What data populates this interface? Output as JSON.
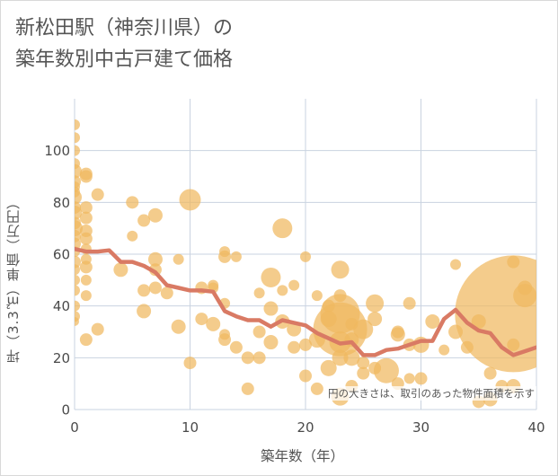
{
  "title_lines": [
    "新松田駅（神奈川県）の",
    "築年数別中古戸建て価格"
  ],
  "chart_data": {
    "type": "scatter",
    "xlabel": "築年数（年）",
    "ylabel": "坪（3.3㎡）単価（万円）",
    "xlim": [
      0,
      40
    ],
    "ylim": [
      0,
      120
    ],
    "xticks": [
      "0",
      "10",
      "20",
      "30",
      "40"
    ],
    "yticks": [
      "0",
      "20",
      "40",
      "60",
      "80",
      "100"
    ],
    "grid": true,
    "annotation": "円の大きさは、取引のあった物件面積を示す",
    "colors": {
      "bubble": "#f0b860",
      "line": "#d97a64",
      "grid": "#c9d3e0"
    },
    "bubble_size_unit": "area, relative",
    "bubbles": [
      {
        "x": 0,
        "y": 110,
        "s": 6
      },
      {
        "x": 0,
        "y": 105,
        "s": 6
      },
      {
        "x": 0,
        "y": 100,
        "s": 6
      },
      {
        "x": 0,
        "y": 95,
        "s": 6
      },
      {
        "x": 0,
        "y": 92,
        "s": 8
      },
      {
        "x": 0,
        "y": 88,
        "s": 7
      },
      {
        "x": 0,
        "y": 86,
        "s": 6
      },
      {
        "x": 0,
        "y": 84,
        "s": 6
      },
      {
        "x": 0,
        "y": 82,
        "s": 8
      },
      {
        "x": 0,
        "y": 78,
        "s": 7
      },
      {
        "x": 0,
        "y": 76,
        "s": 8
      },
      {
        "x": 0,
        "y": 72,
        "s": 7
      },
      {
        "x": 0,
        "y": 70,
        "s": 9
      },
      {
        "x": 0,
        "y": 67,
        "s": 7
      },
      {
        "x": 0,
        "y": 64,
        "s": 7
      },
      {
        "x": 0,
        "y": 61,
        "s": 6
      },
      {
        "x": 0,
        "y": 57,
        "s": 7
      },
      {
        "x": 0,
        "y": 54,
        "s": 6
      },
      {
        "x": 0,
        "y": 50,
        "s": 6
      },
      {
        "x": 0,
        "y": 46,
        "s": 6
      },
      {
        "x": 0,
        "y": 40,
        "s": 6
      },
      {
        "x": 0,
        "y": 36,
        "s": 6
      },
      {
        "x": 0,
        "y": 34,
        "s": 5
      },
      {
        "x": 1,
        "y": 91,
        "s": 7
      },
      {
        "x": 1,
        "y": 90,
        "s": 7
      },
      {
        "x": 1,
        "y": 78,
        "s": 7
      },
      {
        "x": 1,
        "y": 74,
        "s": 7
      },
      {
        "x": 1,
        "y": 69,
        "s": 7
      },
      {
        "x": 1,
        "y": 66,
        "s": 7
      },
      {
        "x": 1,
        "y": 62,
        "s": 6
      },
      {
        "x": 1,
        "y": 58,
        "s": 6
      },
      {
        "x": 1,
        "y": 55,
        "s": 7
      },
      {
        "x": 1,
        "y": 50,
        "s": 6
      },
      {
        "x": 1,
        "y": 44,
        "s": 6
      },
      {
        "x": 1,
        "y": 27,
        "s": 7
      },
      {
        "x": 2,
        "y": 83,
        "s": 7
      },
      {
        "x": 2,
        "y": 31,
        "s": 7
      },
      {
        "x": 4,
        "y": 54,
        "s": 8
      },
      {
        "x": 5,
        "y": 80,
        "s": 7
      },
      {
        "x": 5,
        "y": 67,
        "s": 6
      },
      {
        "x": 6,
        "y": 73,
        "s": 7
      },
      {
        "x": 6,
        "y": 46,
        "s": 7
      },
      {
        "x": 6,
        "y": 38,
        "s": 8
      },
      {
        "x": 7,
        "y": 75,
        "s": 8
      },
      {
        "x": 7,
        "y": 58,
        "s": 8
      },
      {
        "x": 7,
        "y": 47,
        "s": 7
      },
      {
        "x": 7,
        "y": 54,
        "s": 7
      },
      {
        "x": 8,
        "y": 45,
        "s": 7
      },
      {
        "x": 9,
        "y": 58,
        "s": 6
      },
      {
        "x": 9,
        "y": 32,
        "s": 8
      },
      {
        "x": 10,
        "y": 81,
        "s": 12
      },
      {
        "x": 10,
        "y": 18,
        "s": 7
      },
      {
        "x": 11,
        "y": 47,
        "s": 7
      },
      {
        "x": 11,
        "y": 35,
        "s": 7
      },
      {
        "x": 12,
        "y": 48,
        "s": 6
      },
      {
        "x": 12,
        "y": 47,
        "s": 6
      },
      {
        "x": 12,
        "y": 33,
        "s": 8
      },
      {
        "x": 13,
        "y": 61,
        "s": 6
      },
      {
        "x": 13,
        "y": 59,
        "s": 7
      },
      {
        "x": 13,
        "y": 41,
        "s": 6
      },
      {
        "x": 13,
        "y": 29,
        "s": 6
      },
      {
        "x": 13,
        "y": 27,
        "s": 7
      },
      {
        "x": 14,
        "y": 59,
        "s": 6
      },
      {
        "x": 14,
        "y": 24,
        "s": 7
      },
      {
        "x": 15,
        "y": 20,
        "s": 7
      },
      {
        "x": 15,
        "y": 8,
        "s": 7
      },
      {
        "x": 16,
        "y": 45,
        "s": 6
      },
      {
        "x": 16,
        "y": 30,
        "s": 7
      },
      {
        "x": 16,
        "y": 20,
        "s": 7
      },
      {
        "x": 17,
        "y": 51,
        "s": 11
      },
      {
        "x": 17,
        "y": 39,
        "s": 8
      },
      {
        "x": 17,
        "y": 26,
        "s": 8
      },
      {
        "x": 18,
        "y": 70,
        "s": 11
      },
      {
        "x": 18,
        "y": 46,
        "s": 6
      },
      {
        "x": 18,
        "y": 34,
        "s": 8
      },
      {
        "x": 19,
        "y": 48,
        "s": 6
      },
      {
        "x": 19,
        "y": 31,
        "s": 8
      },
      {
        "x": 19,
        "y": 24,
        "s": 7
      },
      {
        "x": 20,
        "y": 59,
        "s": 6
      },
      {
        "x": 20,
        "y": 25,
        "s": 7
      },
      {
        "x": 20,
        "y": 13,
        "s": 7
      },
      {
        "x": 21,
        "y": 44,
        "s": 6
      },
      {
        "x": 21,
        "y": 27,
        "s": 9
      },
      {
        "x": 21,
        "y": 8,
        "s": 7
      },
      {
        "x": 22,
        "y": 40,
        "s": 7
      },
      {
        "x": 22,
        "y": 35,
        "s": 9
      },
      {
        "x": 22,
        "y": 16,
        "s": 9
      },
      {
        "x": 23,
        "y": 54,
        "s": 10
      },
      {
        "x": 23,
        "y": 44,
        "s": 7
      },
      {
        "x": 23,
        "y": 37,
        "s": 22
      },
      {
        "x": 23,
        "y": 31,
        "s": 30
      },
      {
        "x": 23,
        "y": 26,
        "s": 12
      },
      {
        "x": 23,
        "y": 20,
        "s": 9
      },
      {
        "x": 23,
        "y": 5,
        "s": 10
      },
      {
        "x": 24,
        "y": 33,
        "s": 7
      },
      {
        "x": 24,
        "y": 27,
        "s": 8
      },
      {
        "x": 24,
        "y": 20,
        "s": 9
      },
      {
        "x": 24,
        "y": 9,
        "s": 7
      },
      {
        "x": 25,
        "y": 31,
        "s": 11
      },
      {
        "x": 25,
        "y": 18,
        "s": 7
      },
      {
        "x": 25,
        "y": 14,
        "s": 7
      },
      {
        "x": 26,
        "y": 41,
        "s": 10
      },
      {
        "x": 26,
        "y": 35,
        "s": 8
      },
      {
        "x": 26,
        "y": 16,
        "s": 7
      },
      {
        "x": 27,
        "y": 15,
        "s": 14
      },
      {
        "x": 28,
        "y": 30,
        "s": 7
      },
      {
        "x": 28,
        "y": 29,
        "s": 8
      },
      {
        "x": 28,
        "y": 10,
        "s": 7
      },
      {
        "x": 29,
        "y": 41,
        "s": 7
      },
      {
        "x": 29,
        "y": 25,
        "s": 7
      },
      {
        "x": 29,
        "y": 12,
        "s": 6
      },
      {
        "x": 30,
        "y": 25,
        "s": 9
      },
      {
        "x": 30,
        "y": 12,
        "s": 7
      },
      {
        "x": 31,
        "y": 34,
        "s": 8
      },
      {
        "x": 32,
        "y": 23,
        "s": 6
      },
      {
        "x": 33,
        "y": 56,
        "s": 6
      },
      {
        "x": 33,
        "y": 30,
        "s": 8
      },
      {
        "x": 34,
        "y": 24,
        "s": 7
      },
      {
        "x": 35,
        "y": 34,
        "s": 8
      },
      {
        "x": 35,
        "y": 3,
        "s": 7
      },
      {
        "x": 36,
        "y": 14,
        "s": 7
      },
      {
        "x": 36,
        "y": 4,
        "s": 8
      },
      {
        "x": 37,
        "y": 9,
        "s": 7
      },
      {
        "x": 38,
        "y": 57,
        "s": 7
      },
      {
        "x": 38,
        "y": 37,
        "s": 65
      },
      {
        "x": 38,
        "y": 25,
        "s": 7
      },
      {
        "x": 38,
        "y": 9,
        "s": 8
      },
      {
        "x": 39,
        "y": 44,
        "s": 13
      },
      {
        "x": 39,
        "y": 47,
        "s": 8
      }
    ],
    "series": [
      {
        "type": "line",
        "x": [
          0,
          1,
          2,
          3,
          4,
          5,
          6,
          7,
          8,
          9,
          10,
          11,
          12,
          13,
          14,
          15,
          16,
          17,
          18,
          19,
          20,
          21,
          22,
          23,
          24,
          25,
          26,
          27,
          28,
          29,
          30,
          31,
          32,
          33,
          34,
          35,
          36,
          37,
          38,
          39,
          40
        ],
        "values": [
          62,
          61,
          61,
          61.5,
          57,
          57,
          55.5,
          53,
          48,
          47,
          46,
          46,
          45.5,
          38,
          36,
          34.5,
          34.5,
          32,
          34.5,
          33.5,
          32.5,
          29.5,
          27.5,
          25.5,
          26,
          21,
          21,
          23,
          23.5,
          25,
          26.5,
          26.5,
          35,
          38.5,
          33.5,
          30.5,
          29.5,
          24,
          21,
          22.5,
          24
        ]
      }
    ]
  }
}
